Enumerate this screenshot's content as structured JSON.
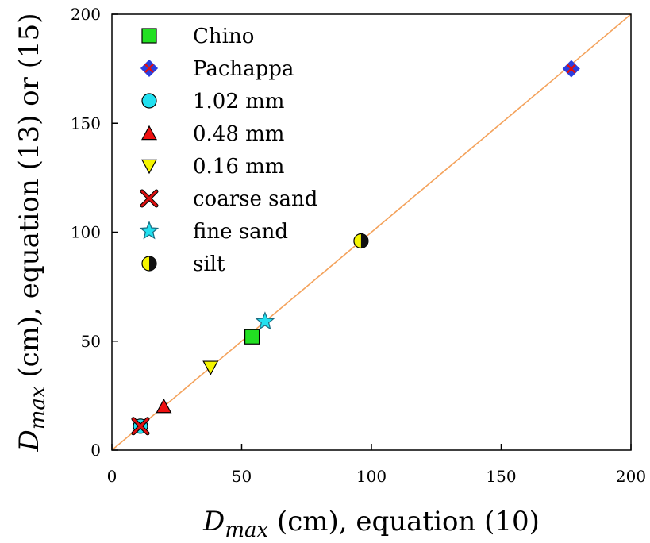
{
  "chart_data": {
    "type": "scatter",
    "title": "",
    "xlabel": {
      "var": "D",
      "sub": "max",
      "rest": " (cm), equation (10)"
    },
    "ylabel": {
      "var": "D",
      "sub": "max",
      "rest": " (cm), equation (13) or (15)"
    },
    "xlim": [
      0,
      200
    ],
    "ylim": [
      0,
      200
    ],
    "xticks": [
      0,
      50,
      100,
      150,
      200
    ],
    "yticks": [
      0,
      50,
      100,
      150,
      200
    ],
    "grid": false,
    "legend_position": "top-left",
    "reference_line": {
      "points": [
        [
          0,
          0
        ],
        [
          200,
          200
        ]
      ],
      "color": "#f4a25b"
    },
    "series": [
      {
        "name": "Chino",
        "marker": "square",
        "fill": "#22e022",
        "points": [
          [
            54,
            52
          ]
        ]
      },
      {
        "name": "Pachappa",
        "marker": "diamond",
        "fill": "#2a3fe0",
        "accent": "#e01010",
        "points": [
          [
            177,
            175
          ]
        ]
      },
      {
        "name": "1.02 mm",
        "marker": "circle",
        "fill": "#22e0f0",
        "points": [
          [
            11,
            11
          ]
        ]
      },
      {
        "name": "0.48 mm",
        "marker": "triangle-up",
        "fill": "#ee1010",
        "points": [
          [
            20,
            20
          ]
        ]
      },
      {
        "name": "0.16 mm",
        "marker": "triangle-down",
        "fill": "#f5f500",
        "points": [
          [
            38,
            38
          ]
        ]
      },
      {
        "name": "coarse sand",
        "marker": "x",
        "fill": "#dd1010",
        "points": [
          [
            11,
            11
          ]
        ]
      },
      {
        "name": "fine sand",
        "marker": "star",
        "fill": "#22e0f0",
        "points": [
          [
            59,
            59
          ]
        ]
      },
      {
        "name": "silt",
        "marker": "half-circle",
        "fill": "#f5f500",
        "accent": "#111111",
        "points": [
          [
            96,
            96
          ]
        ]
      }
    ]
  }
}
